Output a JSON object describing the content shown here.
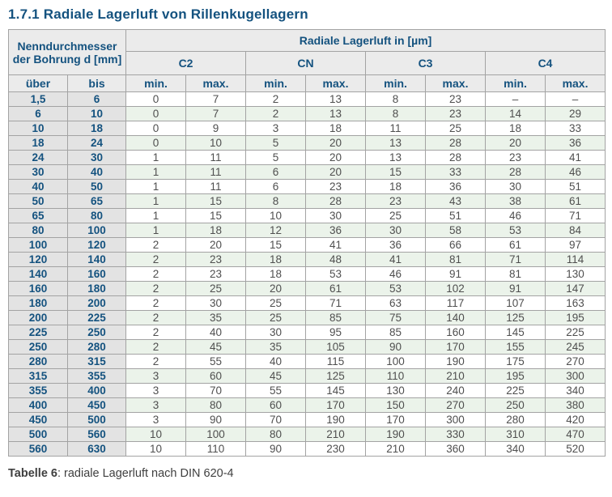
{
  "page": {
    "title": "1.7.1 Radiale Lagerluft von Rillenkugellagern",
    "caption_bold": "Tabelle 6",
    "caption_rest": ": radiale Lagerluft nach DIN 620-4"
  },
  "table": {
    "header": {
      "bore_label_line1": "Nenndurchmesser",
      "bore_label_line2": "der Bohrung d [mm]",
      "clearance_label": "Radiale Lagerluft in [µm]",
      "groups": [
        "C2",
        "CN",
        "C3",
        "C4"
      ],
      "over_label": "über",
      "to_label": "bis",
      "min_label": "min.",
      "max_label": "max."
    },
    "rows": [
      [
        "1,5",
        "6",
        "0",
        "7",
        "2",
        "13",
        "8",
        "23",
        "–",
        "–"
      ],
      [
        "6",
        "10",
        "0",
        "7",
        "2",
        "13",
        "8",
        "23",
        "14",
        "29"
      ],
      [
        "10",
        "18",
        "0",
        "9",
        "3",
        "18",
        "11",
        "25",
        "18",
        "33"
      ],
      [
        "18",
        "24",
        "0",
        "10",
        "5",
        "20",
        "13",
        "28",
        "20",
        "36"
      ],
      [
        "24",
        "30",
        "1",
        "11",
        "5",
        "20",
        "13",
        "28",
        "23",
        "41"
      ],
      [
        "30",
        "40",
        "1",
        "11",
        "6",
        "20",
        "15",
        "33",
        "28",
        "46"
      ],
      [
        "40",
        "50",
        "1",
        "11",
        "6",
        "23",
        "18",
        "36",
        "30",
        "51"
      ],
      [
        "50",
        "65",
        "1",
        "15",
        "8",
        "28",
        "23",
        "43",
        "38",
        "61"
      ],
      [
        "65",
        "80",
        "1",
        "15",
        "10",
        "30",
        "25",
        "51",
        "46",
        "71"
      ],
      [
        "80",
        "100",
        "1",
        "18",
        "12",
        "36",
        "30",
        "58",
        "53",
        "84"
      ],
      [
        "100",
        "120",
        "2",
        "20",
        "15",
        "41",
        "36",
        "66",
        "61",
        "97"
      ],
      [
        "120",
        "140",
        "2",
        "23",
        "18",
        "48",
        "41",
        "81",
        "71",
        "114"
      ],
      [
        "140",
        "160",
        "2",
        "23",
        "18",
        "53",
        "46",
        "91",
        "81",
        "130"
      ],
      [
        "160",
        "180",
        "2",
        "25",
        "20",
        "61",
        "53",
        "102",
        "91",
        "147"
      ],
      [
        "180",
        "200",
        "2",
        "30",
        "25",
        "71",
        "63",
        "117",
        "107",
        "163"
      ],
      [
        "200",
        "225",
        "2",
        "35",
        "25",
        "85",
        "75",
        "140",
        "125",
        "195"
      ],
      [
        "225",
        "250",
        "2",
        "40",
        "30",
        "95",
        "85",
        "160",
        "145",
        "225"
      ],
      [
        "250",
        "280",
        "2",
        "45",
        "35",
        "105",
        "90",
        "170",
        "155",
        "245"
      ],
      [
        "280",
        "315",
        "2",
        "55",
        "40",
        "115",
        "100",
        "190",
        "175",
        "270"
      ],
      [
        "315",
        "355",
        "3",
        "60",
        "45",
        "125",
        "110",
        "210",
        "195",
        "300"
      ],
      [
        "355",
        "400",
        "3",
        "70",
        "55",
        "145",
        "130",
        "240",
        "225",
        "340"
      ],
      [
        "400",
        "450",
        "3",
        "80",
        "60",
        "170",
        "150",
        "270",
        "250",
        "380"
      ],
      [
        "450",
        "500",
        "3",
        "90",
        "70",
        "190",
        "170",
        "300",
        "280",
        "420"
      ],
      [
        "500",
        "560",
        "10",
        "100",
        "80",
        "210",
        "190",
        "330",
        "310",
        "470"
      ],
      [
        "560",
        "630",
        "10",
        "110",
        "90",
        "230",
        "210",
        "360",
        "340",
        "520"
      ]
    ]
  },
  "colors": {
    "heading_blue": "#14527f",
    "data_text": "#4f4f4f",
    "row_green": "#ebf3ea",
    "header_gray": "#ebebeb",
    "bore_gray": "#e3e3e3",
    "border_gray": "#a3a3a3",
    "outer_border": "#8c8c8c",
    "caption_text": "#3f3f3f"
  }
}
